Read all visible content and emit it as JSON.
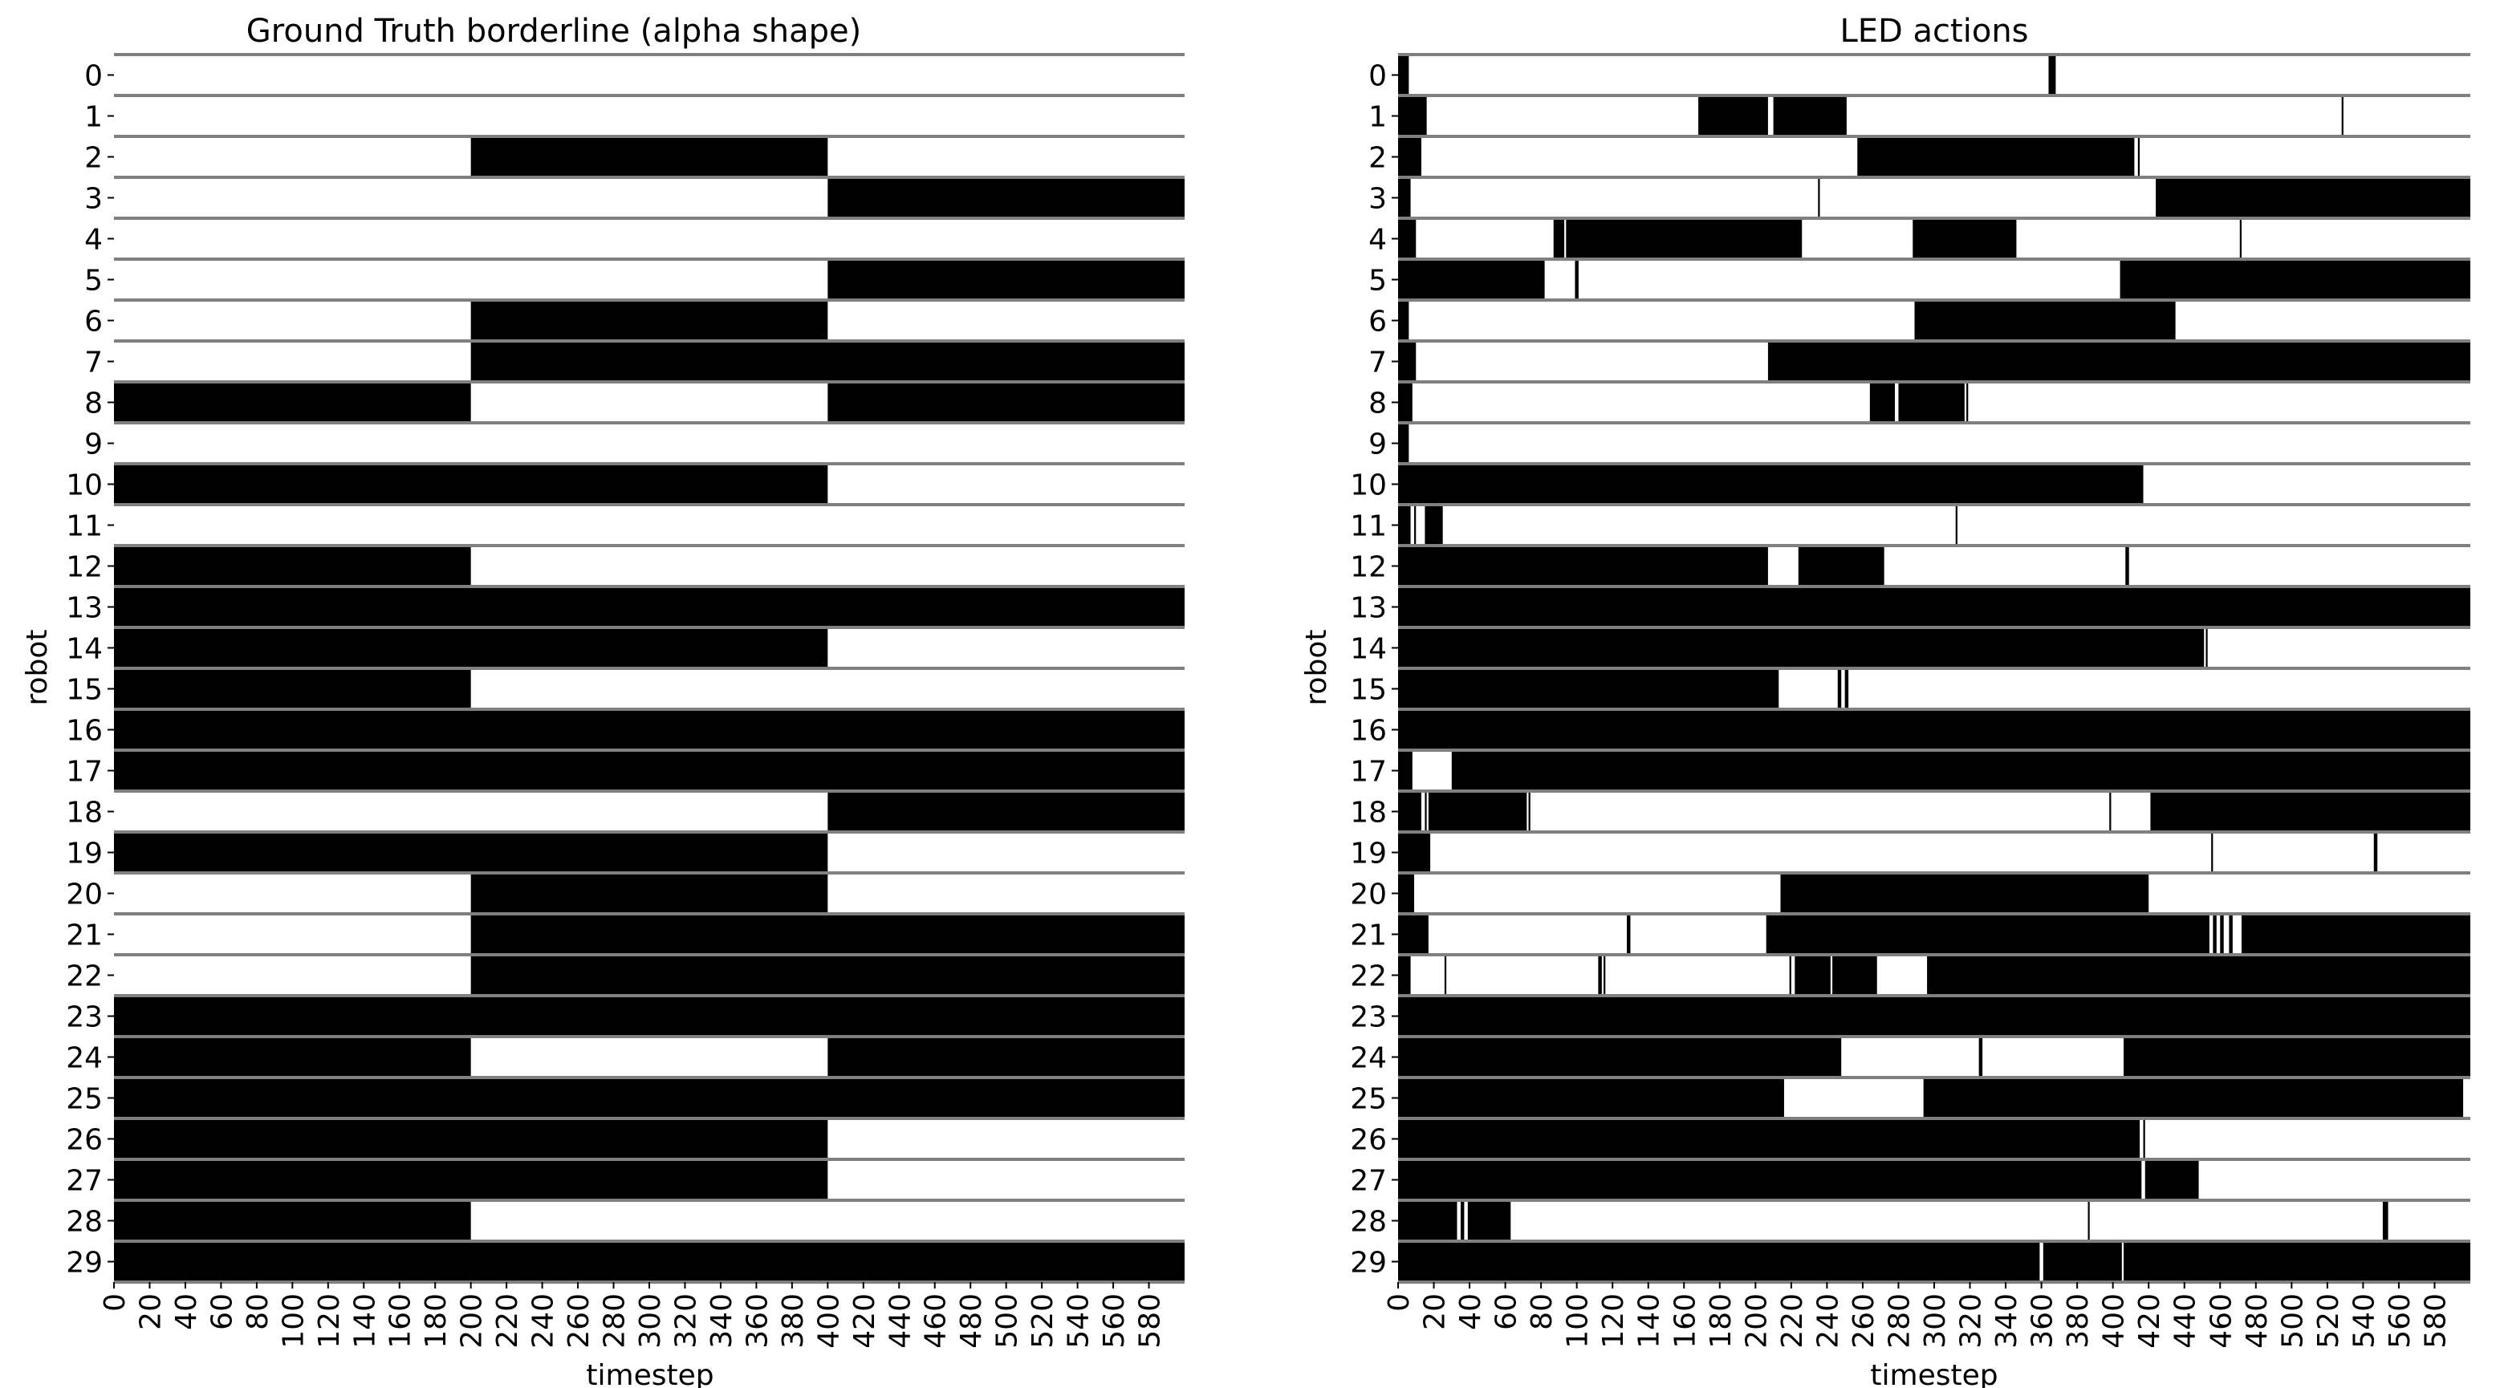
{
  "chart_data": [
    {
      "type": "heatmap",
      "title": "Ground Truth borderline (alpha shape)",
      "xlabel": "timestep",
      "ylabel": "robot",
      "xlim": [
        0,
        600
      ],
      "xticks": [
        0,
        20,
        40,
        60,
        80,
        100,
        120,
        140,
        160,
        180,
        200,
        220,
        240,
        260,
        280,
        300,
        320,
        340,
        360,
        380,
        400,
        420,
        440,
        460,
        480,
        500,
        520,
        540,
        560,
        580
      ],
      "robots": [
        0,
        1,
        2,
        3,
        4,
        5,
        6,
        7,
        8,
        9,
        10,
        11,
        12,
        13,
        14,
        15,
        16,
        17,
        18,
        19,
        20,
        21,
        22,
        23,
        24,
        25,
        26,
        27,
        28,
        29
      ],
      "colors": {
        "on": "#000000",
        "off": "#ffffff",
        "separator": "#808080"
      },
      "on_intervals": [
        [],
        [],
        [
          [
            200,
            400
          ]
        ],
        [
          [
            400,
            600
          ]
        ],
        [],
        [
          [
            400,
            600
          ]
        ],
        [
          [
            200,
            400
          ]
        ],
        [
          [
            200,
            600
          ]
        ],
        [
          [
            0,
            200
          ],
          [
            400,
            600
          ]
        ],
        [],
        [
          [
            0,
            400
          ]
        ],
        [],
        [
          [
            0,
            200
          ]
        ],
        [
          [
            0,
            600
          ]
        ],
        [
          [
            0,
            400
          ]
        ],
        [
          [
            0,
            200
          ]
        ],
        [
          [
            0,
            600
          ]
        ],
        [
          [
            0,
            600
          ]
        ],
        [
          [
            400,
            600
          ]
        ],
        [
          [
            0,
            400
          ]
        ],
        [
          [
            200,
            400
          ]
        ],
        [
          [
            200,
            600
          ]
        ],
        [
          [
            200,
            600
          ]
        ],
        [
          [
            0,
            600
          ]
        ],
        [
          [
            0,
            200
          ],
          [
            400,
            600
          ]
        ],
        [
          [
            0,
            600
          ]
        ],
        [
          [
            0,
            400
          ]
        ],
        [
          [
            0,
            400
          ]
        ],
        [
          [
            0,
            200
          ]
        ],
        [
          [
            0,
            600
          ]
        ]
      ]
    },
    {
      "type": "heatmap",
      "title": "LED actions",
      "xlabel": "timestep",
      "ylabel": "robot",
      "xlim": [
        0,
        600
      ],
      "xticks": [
        0,
        20,
        40,
        60,
        80,
        100,
        120,
        140,
        160,
        180,
        200,
        220,
        240,
        260,
        280,
        300,
        320,
        340,
        360,
        380,
        400,
        420,
        440,
        460,
        480,
        500,
        520,
        540,
        560,
        580
      ],
      "robots": [
        0,
        1,
        2,
        3,
        4,
        5,
        6,
        7,
        8,
        9,
        10,
        11,
        12,
        13,
        14,
        15,
        16,
        17,
        18,
        19,
        20,
        21,
        22,
        23,
        24,
        25,
        26,
        27,
        28,
        29
      ],
      "colors": {
        "on": "#000000",
        "off": "#ffffff",
        "separator": "#808080"
      },
      "on_intervals": [
        [
          [
            0,
            6
          ],
          [
            364,
            368
          ]
        ],
        [
          [
            0,
            16
          ],
          [
            168,
            207
          ],
          [
            210,
            251
          ],
          [
            528,
            529
          ]
        ],
        [
          [
            0,
            13
          ],
          [
            257,
            412
          ],
          [
            414,
            415
          ]
        ],
        [
          [
            0,
            7
          ],
          [
            235,
            236
          ],
          [
            424,
            600
          ]
        ],
        [
          [
            0,
            10
          ],
          [
            87,
            93
          ],
          [
            94,
            226
          ],
          [
            288,
            346
          ],
          [
            471,
            472
          ]
        ],
        [
          [
            0,
            82
          ],
          [
            99,
            101
          ],
          [
            404,
            600
          ]
        ],
        [
          [
            0,
            6
          ],
          [
            289,
            435
          ]
        ],
        [
          [
            0,
            10
          ],
          [
            207,
            600
          ]
        ],
        [
          [
            0,
            8
          ],
          [
            264,
            278
          ],
          [
            280,
            317
          ],
          [
            318,
            319
          ]
        ],
        [
          [
            0,
            6
          ]
        ],
        [
          [
            0,
            417
          ]
        ],
        [
          [
            0,
            7
          ],
          [
            9,
            10
          ],
          [
            15,
            25
          ],
          [
            312,
            313
          ]
        ],
        [
          [
            0,
            207
          ],
          [
            224,
            272
          ],
          [
            407,
            409
          ]
        ],
        [
          [
            0,
            600
          ]
        ],
        [
          [
            0,
            451
          ],
          [
            452,
            453
          ]
        ],
        [
          [
            0,
            213
          ],
          [
            246,
            248
          ],
          [
            250,
            252
          ]
        ],
        [
          [
            0,
            600
          ]
        ],
        [
          [
            0,
            8
          ],
          [
            30,
            600
          ]
        ],
        [
          [
            0,
            13
          ],
          [
            15,
            16
          ],
          [
            17,
            72
          ],
          [
            73,
            74
          ],
          [
            398,
            399
          ],
          [
            421,
            600
          ]
        ],
        [
          [
            0,
            18
          ],
          [
            455,
            456
          ],
          [
            546,
            548
          ]
        ],
        [
          [
            0,
            9
          ],
          [
            214,
            420
          ]
        ],
        [
          [
            0,
            17
          ],
          [
            128,
            130
          ],
          [
            206,
            454
          ],
          [
            456,
            458
          ],
          [
            460,
            462
          ],
          [
            465,
            467
          ],
          [
            472,
            600
          ]
        ],
        [
          [
            0,
            7
          ],
          [
            26,
            27
          ],
          [
            112,
            114
          ],
          [
            115,
            116
          ],
          [
            219,
            220
          ],
          [
            222,
            242
          ],
          [
            243,
            268
          ],
          [
            296,
            600
          ]
        ],
        [
          [
            0,
            600
          ]
        ],
        [
          [
            0,
            248
          ],
          [
            325,
            327
          ],
          [
            406,
            600
          ]
        ],
        [
          [
            0,
            216
          ],
          [
            294,
            596
          ]
        ],
        [
          [
            0,
            415
          ],
          [
            417,
            418
          ]
        ],
        [
          [
            0,
            416
          ],
          [
            418,
            448
          ]
        ],
        [
          [
            0,
            33
          ],
          [
            35,
            37
          ],
          [
            39,
            63
          ],
          [
            386,
            387
          ],
          [
            551,
            554
          ]
        ],
        [
          [
            0,
            359
          ],
          [
            361,
            405
          ],
          [
            406,
            600
          ]
        ]
      ]
    }
  ]
}
